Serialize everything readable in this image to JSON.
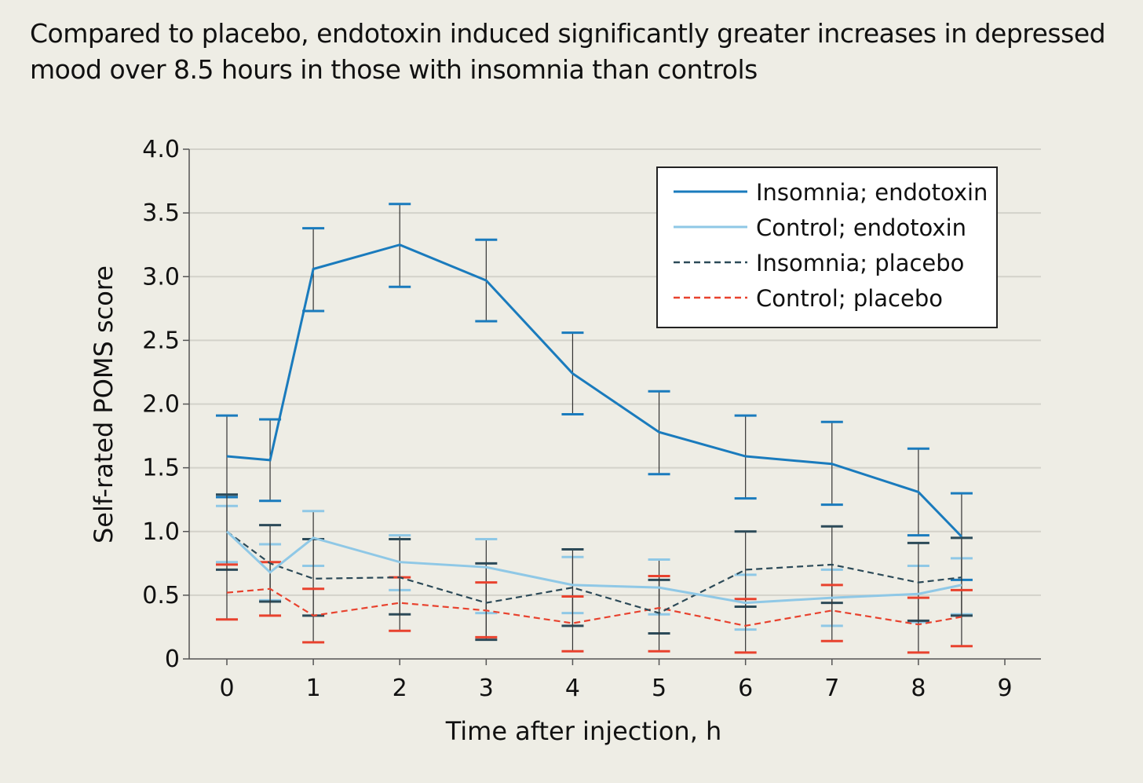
{
  "chart_data": {
    "type": "line",
    "title": "Compared to placebo, endotoxin induced significantly greater increases in depressed mood over 8.5 hours in those with insomnia than controls",
    "xlabel": "Time after injection, h",
    "ylabel": "Self-rated POMS score",
    "xlim": [
      0,
      9
    ],
    "ylim": [
      0,
      4
    ],
    "xticks": [
      "0",
      "1",
      "2",
      "3",
      "4",
      "5",
      "6",
      "7",
      "8",
      "9"
    ],
    "yticks": [
      "0",
      "0.5",
      "1.0",
      "1.5",
      "2.0",
      "2.5",
      "3.0",
      "3.5",
      "4.0"
    ],
    "grid": "horizontal",
    "legend_position": "top-right",
    "x": [
      0,
      0.5,
      1,
      2,
      3,
      4,
      5,
      6,
      7,
      8,
      8.5
    ],
    "series": [
      {
        "name": "Insomnia; endotoxin",
        "color": "#1a7bbd",
        "dashed": false,
        "values": [
          1.59,
          1.56,
          3.06,
          3.25,
          2.97,
          2.24,
          1.78,
          1.59,
          1.53,
          1.31,
          0.96
        ],
        "upper": [
          1.91,
          1.88,
          3.38,
          3.57,
          3.29,
          2.56,
          2.1,
          1.91,
          1.86,
          1.65,
          1.3
        ],
        "lower": [
          1.27,
          1.24,
          2.73,
          2.92,
          2.65,
          1.92,
          1.45,
          1.26,
          1.21,
          0.97,
          0.62
        ]
      },
      {
        "name": "Control; endotoxin",
        "color": "#8fc8e6",
        "dashed": false,
        "values": [
          1.0,
          0.68,
          0.95,
          0.76,
          0.72,
          0.58,
          0.56,
          0.44,
          0.48,
          0.51,
          0.58
        ],
        "upper": [
          1.2,
          0.9,
          1.16,
          0.97,
          0.94,
          0.8,
          0.78,
          0.66,
          0.7,
          0.73,
          0.79
        ],
        "lower": [
          0.76,
          0.46,
          0.73,
          0.54,
          0.36,
          0.36,
          0.35,
          0.23,
          0.26,
          0.29,
          0.35
        ]
      },
      {
        "name": "Insomnia; placebo",
        "color": "#2c4a58",
        "dashed": true,
        "values": [
          1.0,
          0.75,
          0.63,
          0.64,
          0.44,
          0.56,
          0.36,
          0.7,
          0.74,
          0.6,
          0.64
        ],
        "upper": [
          1.29,
          1.05,
          0.94,
          0.94,
          0.75,
          0.86,
          0.62,
          1.0,
          1.04,
          0.91,
          0.95
        ],
        "lower": [
          0.7,
          0.45,
          0.34,
          0.35,
          0.15,
          0.26,
          0.2,
          0.41,
          0.44,
          0.3,
          0.34
        ]
      },
      {
        "name": "Control; placebo",
        "color": "#e8422e",
        "dashed": true,
        "values": [
          0.52,
          0.55,
          0.34,
          0.44,
          0.38,
          0.28,
          0.4,
          0.26,
          0.38,
          0.27,
          0.33
        ],
        "upper": [
          0.74,
          0.76,
          0.55,
          0.64,
          0.6,
          0.49,
          0.65,
          0.47,
          0.58,
          0.48,
          0.54
        ],
        "lower": [
          0.31,
          0.34,
          0.13,
          0.22,
          0.17,
          0.06,
          0.06,
          0.05,
          0.14,
          0.05,
          0.1
        ]
      }
    ]
  }
}
